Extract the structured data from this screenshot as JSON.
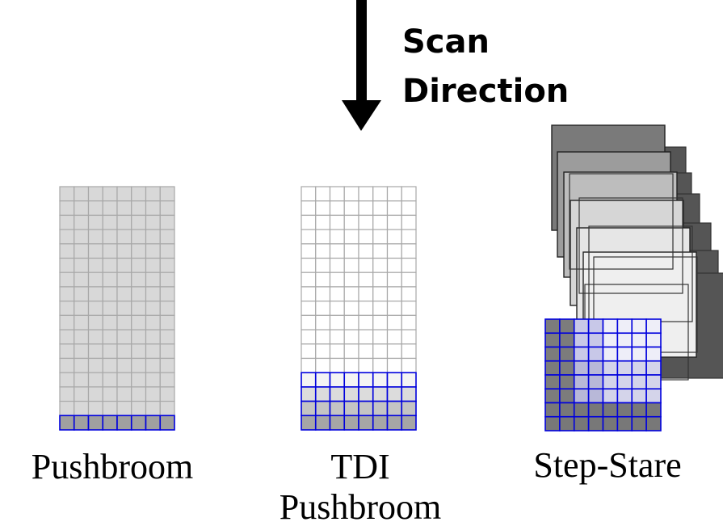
{
  "scan": {
    "line1": "Scan",
    "line2": "Direction"
  },
  "panels": {
    "pushbroom": {
      "label": "Pushbroom"
    },
    "tdi": {
      "label_line1": "TDI",
      "label_line2": "Pushbroom"
    },
    "step_stare": {
      "label": "Step-Stare"
    }
  },
  "colors": {
    "detector_blue": "#0000dd",
    "grid_gray": "#a8a8a8",
    "fill_light_gray": "#d8d8d8",
    "fill_mid_gray": "#a0a0a0",
    "frame_dark_gray": "#777777",
    "arrow": "#000000"
  }
}
